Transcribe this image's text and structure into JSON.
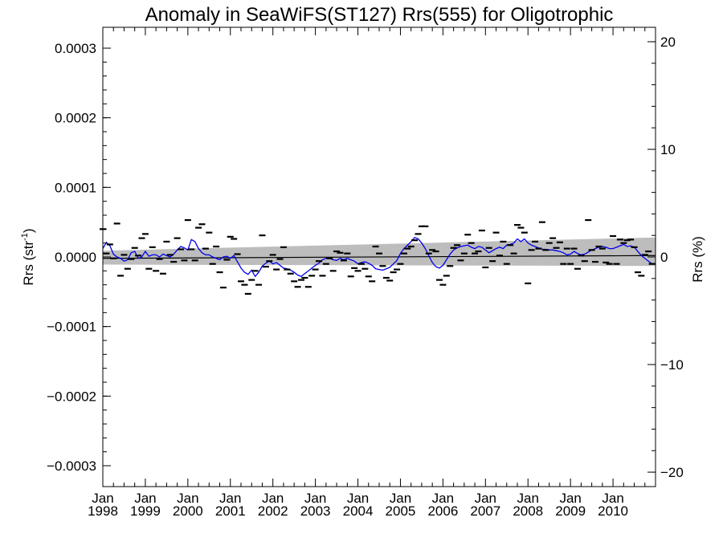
{
  "chart_data": {
    "type": "scatter",
    "title": "Anomaly in SeaWiFS(ST127) Rrs(555) for Oligotrophic",
    "ylabel_main": "Rrs (str",
    "ylabel_sup": "-1",
    "ylabel_close": ")",
    "y2label": "Rrs (%)",
    "xlim": [
      0,
      156
    ],
    "ylim": [
      -0.00033,
      0.00033
    ],
    "y2lim": [
      -21.34,
      21.34
    ],
    "grid": false,
    "legend": "none",
    "y_ticks": [
      {
        "value": 0.0003,
        "label": "0.0003"
      },
      {
        "value": 0.0002,
        "label": "0.0002"
      },
      {
        "value": 0.0001,
        "label": "0.0001"
      },
      {
        "value": 0.0,
        "label": "0.0000"
      },
      {
        "value": -0.0001,
        "label": "−0.0001"
      },
      {
        "value": -0.0002,
        "label": "−0.0002"
      },
      {
        "value": -0.0003,
        "label": "−0.0003"
      }
    ],
    "y2_ticks": [
      {
        "value": 20,
        "label": "20"
      },
      {
        "value": 10,
        "label": "10"
      },
      {
        "value": 0,
        "label": "0"
      },
      {
        "value": -10,
        "label": "−10"
      },
      {
        "value": -20,
        "label": "−20"
      }
    ],
    "x_ticks": [
      {
        "value": 0,
        "month": "Jan",
        "year": "1998"
      },
      {
        "value": 12,
        "month": "Jan",
        "year": "1999"
      },
      {
        "value": 24,
        "month": "Jan",
        "year": "2000"
      },
      {
        "value": 36,
        "month": "Jan",
        "year": "2001"
      },
      {
        "value": 48,
        "month": "Jan",
        "year": "2002"
      },
      {
        "value": 60,
        "month": "Jan",
        "year": "2003"
      },
      {
        "value": 72,
        "month": "Jan",
        "year": "2004"
      },
      {
        "value": 84,
        "month": "Jan",
        "year": "2005"
      },
      {
        "value": 96,
        "month": "Jan",
        "year": "2006"
      },
      {
        "value": 108,
        "month": "Jan",
        "year": "2007"
      },
      {
        "value": 120,
        "month": "Jan",
        "year": "2008"
      },
      {
        "value": 132,
        "month": "Jan",
        "year": "2009"
      },
      {
        "value": 144,
        "month": "Jan",
        "year": "2010"
      }
    ],
    "monthly_anomaly": [
      [
        0,
        4e-05
      ],
      [
        1,
        5e-06
      ],
      [
        2,
        1.8e-05
      ],
      [
        3,
        -2e-06
      ],
      [
        4,
        4.8e-05
      ],
      [
        5,
        -2.7e-05
      ],
      [
        6,
        3e-06
      ],
      [
        7,
        -1.7e-05
      ],
      [
        8,
        -3e-06
      ],
      [
        9,
        1.3e-05
      ],
      [
        10,
        2e-06
      ],
      [
        11,
        2.7e-05
      ],
      [
        12,
        3.3e-05
      ],
      [
        13,
        -1.7e-05
      ],
      [
        14,
        1.4e-05
      ],
      [
        15,
        -2e-05
      ],
      [
        16,
        -3e-06
      ],
      [
        17,
        -2.4e-05
      ],
      [
        18,
        2.2e-05
      ],
      [
        19,
        3e-06
      ],
      [
        20,
        -7e-06
      ],
      [
        21,
        2.7e-05
      ],
      [
        22,
        1.1e-05
      ],
      [
        23,
        -5e-06
      ],
      [
        24,
        5.3e-05
      ],
      [
        25,
        1.1e-05
      ],
      [
        26,
        -5e-06
      ],
      [
        27,
        4.2e-05
      ],
      [
        28,
        4.7e-05
      ],
      [
        29,
        1.2e-05
      ],
      [
        30,
        3.5e-05
      ],
      [
        31,
        -1e-05
      ],
      [
        32,
        1.5e-05
      ],
      [
        33,
        -2.2e-05
      ],
      [
        34,
        -4.4e-05
      ],
      [
        35,
        -4e-06
      ],
      [
        36,
        2.9e-05
      ],
      [
        37,
        2.6e-05
      ],
      [
        38,
        4e-06
      ],
      [
        39,
        -3.5e-05
      ],
      [
        40,
        -4e-05
      ],
      [
        41,
        -5.3e-05
      ],
      [
        42,
        -3.3e-05
      ],
      [
        43,
        -2e-05
      ],
      [
        44,
        -4e-05
      ],
      [
        45,
        3.1e-05
      ],
      [
        46,
        -1.4e-05
      ],
      [
        47,
        -6e-06
      ],
      [
        48,
        3e-06
      ],
      [
        49,
        -1.8e-05
      ],
      [
        50,
        -3e-06
      ],
      [
        51,
        1.4e-05
      ],
      [
        52,
        -1.8e-05
      ],
      [
        53,
        -2.4e-05
      ],
      [
        54,
        -3.5e-05
      ],
      [
        55,
        -4.3e-05
      ],
      [
        56,
        -3.3e-05
      ],
      [
        57,
        -3e-05
      ],
      [
        58,
        -4.3e-05
      ],
      [
        59,
        -2.7e-05
      ],
      [
        60,
        -1.8e-05
      ],
      [
        61,
        -6e-06
      ],
      [
        62,
        -2.7e-05
      ],
      [
        63,
        -1e-05
      ],
      [
        64,
        -2e-06
      ],
      [
        65,
        -2e-05
      ],
      [
        66,
        8e-06
      ],
      [
        67,
        6e-06
      ],
      [
        68,
        -5e-06
      ],
      [
        69,
        5e-06
      ],
      [
        70,
        -2.8e-05
      ],
      [
        71,
        -1.6e-05
      ],
      [
        72,
        -2e-05
      ],
      [
        73,
        -1e-05
      ],
      [
        74,
        -1.7e-05
      ],
      [
        75,
        -2.8e-05
      ],
      [
        76,
        -3.5e-05
      ],
      [
        77,
        1.5e-05
      ],
      [
        78,
        5e-06
      ],
      [
        79,
        -1.3e-05
      ],
      [
        80,
        -3e-05
      ],
      [
        81,
        -3.4e-05
      ],
      [
        82,
        -2.2e-05
      ],
      [
        83,
        -1.8e-05
      ],
      [
        84,
        -1e-05
      ],
      [
        85,
        5e-06
      ],
      [
        86,
        1.2e-05
      ],
      [
        87,
        1.5e-05
      ],
      [
        88,
        2.4e-05
      ],
      [
        89,
        3.3e-05
      ],
      [
        90,
        4.4e-05
      ],
      [
        91,
        4.4e-05
      ],
      [
        92,
        5e-06
      ],
      [
        93,
        1e-05
      ],
      [
        94,
        8e-06
      ],
      [
        95,
        -3.3e-05
      ],
      [
        96,
        -4e-05
      ],
      [
        97,
        -2.7e-05
      ],
      [
        98,
        -1.3e-05
      ],
      [
        99,
        1.3e-05
      ],
      [
        100,
        1.7e-05
      ],
      [
        101,
        -5e-06
      ],
      [
        102,
        5e-06
      ],
      [
        103,
        3.2e-05
      ],
      [
        104,
        2e-05
      ],
      [
        105,
        5e-06
      ],
      [
        106,
        8e-06
      ],
      [
        107,
        3.8e-05
      ],
      [
        108,
        -1.5e-05
      ],
      [
        109,
        1.3e-05
      ],
      [
        110,
        -6e-06
      ],
      [
        111,
        3.5e-05
      ],
      [
        112,
        2e-06
      ],
      [
        113,
        2.2e-05
      ],
      [
        114,
        -1e-05
      ],
      [
        115,
        1.7e-05
      ],
      [
        116,
        5e-06
      ],
      [
        117,
        4.6e-05
      ],
      [
        118,
        4.2e-05
      ],
      [
        119,
        3.5e-05
      ],
      [
        120,
        -3.8e-05
      ],
      [
        121,
        1e-05
      ],
      [
        122,
        2.2e-05
      ],
      [
        123,
        1.2e-05
      ],
      [
        124,
        5e-05
      ],
      [
        125,
        1e-05
      ],
      [
        126,
        2e-05
      ],
      [
        127,
        2.7e-05
      ],
      [
        128,
        1.3e-05
      ],
      [
        129,
        2.1e-05
      ],
      [
        130,
        -1e-05
      ],
      [
        131,
        1.2e-05
      ],
      [
        132,
        -1e-05
      ],
      [
        133,
        1.2e-05
      ],
      [
        134,
        -1.7e-05
      ],
      [
        135,
        2e-06
      ],
      [
        136,
        -6e-06
      ],
      [
        137,
        5.3e-05
      ],
      [
        138,
        1e-05
      ],
      [
        139,
        -7e-06
      ],
      [
        140,
        1.5e-05
      ],
      [
        141,
        1.2e-05
      ],
      [
        142,
        -8e-06
      ],
      [
        143,
        -1e-05
      ],
      [
        144,
        3e-05
      ],
      [
        145,
        -1e-05
      ],
      [
        146,
        2.5e-05
      ],
      [
        147,
        2e-05
      ],
      [
        148,
        2.4e-05
      ],
      [
        149,
        2.5e-05
      ],
      [
        150,
        1.4e-05
      ],
      [
        151,
        -2.2e-05
      ],
      [
        152,
        -2.7e-05
      ],
      [
        153,
        3e-06
      ],
      [
        154,
        8e-06
      ],
      [
        155,
        -1e-05
      ]
    ],
    "running_mean": [
      [
        0,
        1.2e-05
      ],
      [
        1,
        2.1e-05
      ],
      [
        2,
        1.6e-05
      ],
      [
        3,
        4e-06
      ],
      [
        4,
        0.0
      ],
      [
        5,
        -2e-06
      ],
      [
        6,
        -6e-06
      ],
      [
        7,
        -4e-06
      ],
      [
        8,
        6e-06
      ],
      [
        9,
        8e-06
      ],
      [
        10,
        -2e-06
      ],
      [
        11,
        0.0
      ],
      [
        12,
        8e-06
      ],
      [
        13,
        1e-06
      ],
      [
        14,
        3e-06
      ],
      [
        15,
        3e-06
      ],
      [
        16,
        0.0
      ],
      [
        17,
        4e-06
      ],
      [
        18,
        2e-06
      ],
      [
        19,
        0.0
      ],
      [
        20,
        4e-06
      ],
      [
        21,
        1e-05
      ],
      [
        22,
        1.5e-05
      ],
      [
        23,
        1.3e-05
      ],
      [
        24,
        1e-05
      ],
      [
        25,
        2.5e-05
      ],
      [
        26,
        2.2e-05
      ],
      [
        27,
        1.2e-05
      ],
      [
        28,
        6e-06
      ],
      [
        29,
        3e-06
      ],
      [
        30,
        3e-06
      ],
      [
        31,
        0.0
      ],
      [
        32,
        -2e-06
      ],
      [
        33,
        -4e-06
      ],
      [
        34,
        0.0
      ],
      [
        35,
        1e-06
      ],
      [
        36,
        -2e-06
      ],
      [
        37,
        2e-06
      ],
      [
        38,
        -7e-06
      ],
      [
        39,
        -1.6e-05
      ],
      [
        40,
        -2.2e-05
      ],
      [
        41,
        -2.5e-05
      ],
      [
        42,
        -1.9e-05
      ],
      [
        43,
        -2.8e-05
      ],
      [
        44,
        -2.2e-05
      ],
      [
        45,
        -1.3e-05
      ],
      [
        46,
        -9e-06
      ],
      [
        47,
        -6e-06
      ],
      [
        48,
        -1e-05
      ],
      [
        49,
        -8e-06
      ],
      [
        50,
        -1.2e-05
      ],
      [
        51,
        -1.6e-05
      ],
      [
        52,
        -1.7e-05
      ],
      [
        53,
        -1.9e-05
      ],
      [
        54,
        -2.2e-05
      ],
      [
        55,
        -2.6e-05
      ],
      [
        56,
        -2.8e-05
      ],
      [
        57,
        -2.4e-05
      ],
      [
        58,
        -2e-05
      ],
      [
        59,
        -1.6e-05
      ],
      [
        60,
        -1.2e-05
      ],
      [
        61,
        -9e-06
      ],
      [
        62,
        -4e-06
      ],
      [
        63,
        -2e-06
      ],
      [
        64,
        -2e-06
      ],
      [
        65,
        -4e-06
      ],
      [
        66,
        -5e-06
      ],
      [
        67,
        -2e-06
      ],
      [
        68,
        -4e-06
      ],
      [
        69,
        -2e-06
      ],
      [
        70,
        -4e-06
      ],
      [
        71,
        -6e-06
      ],
      [
        72,
        -1e-05
      ],
      [
        73,
        -8e-06
      ],
      [
        74,
        -7e-06
      ],
      [
        75,
        -9e-06
      ],
      [
        76,
        -1.2e-05
      ],
      [
        77,
        -1.7e-05
      ],
      [
        78,
        -1.8e-05
      ],
      [
        79,
        -1.9e-05
      ],
      [
        80,
        -1.7e-05
      ],
      [
        81,
        -1.5e-05
      ],
      [
        82,
        -1e-05
      ],
      [
        83,
        -5e-06
      ],
      [
        84,
        5e-06
      ],
      [
        85,
        1.2e-05
      ],
      [
        86,
        1.7e-05
      ],
      [
        87,
        2.2e-05
      ],
      [
        88,
        2.8e-05
      ],
      [
        89,
        2.6e-05
      ],
      [
        90,
        2e-05
      ],
      [
        91,
        1.2e-05
      ],
      [
        92,
        2e-06
      ],
      [
        93,
        -8e-06
      ],
      [
        94,
        -1.4e-05
      ],
      [
        95,
        -1.6e-05
      ],
      [
        96,
        -1.2e-05
      ],
      [
        97,
        -4e-06
      ],
      [
        98,
        4e-06
      ],
      [
        99,
        1e-05
      ],
      [
        100,
        1.3e-05
      ],
      [
        101,
        1.5e-05
      ],
      [
        102,
        1.6e-05
      ],
      [
        103,
        1.7e-05
      ],
      [
        104,
        1.4e-05
      ],
      [
        105,
        1.2e-05
      ],
      [
        106,
        1.5e-05
      ],
      [
        107,
        1.4e-05
      ],
      [
        108,
        1e-05
      ],
      [
        109,
        6e-06
      ],
      [
        110,
        9e-06
      ],
      [
        111,
        1.2e-05
      ],
      [
        112,
        1.4e-05
      ],
      [
        113,
        1.2e-05
      ],
      [
        114,
        1.7e-05
      ],
      [
        115,
        1.8e-05
      ],
      [
        116,
        2e-05
      ],
      [
        117,
        2.6e-05
      ],
      [
        118,
        2.2e-05
      ],
      [
        119,
        2.6e-05
      ],
      [
        120,
        2e-05
      ],
      [
        121,
        1.7e-05
      ],
      [
        122,
        1.5e-05
      ],
      [
        123,
        1.3e-05
      ],
      [
        124,
        1.1e-05
      ],
      [
        125,
        1.1e-05
      ],
      [
        126,
        1e-05
      ],
      [
        127,
        1e-05
      ],
      [
        128,
        9e-06
      ],
      [
        129,
        8e-06
      ],
      [
        130,
        6e-06
      ],
      [
        131,
        3e-06
      ],
      [
        132,
        4e-06
      ],
      [
        133,
        8e-06
      ],
      [
        134,
        5e-06
      ],
      [
        135,
        3e-06
      ],
      [
        136,
        4e-06
      ],
      [
        137,
        7e-06
      ],
      [
        138,
        1e-05
      ],
      [
        139,
        1.2e-05
      ],
      [
        140,
        1.4e-05
      ],
      [
        141,
        1.5e-05
      ],
      [
        142,
        1.4e-05
      ],
      [
        143,
        1.2e-05
      ],
      [
        144,
        1.2e-05
      ],
      [
        145,
        1.4e-05
      ],
      [
        146,
        1.6e-05
      ],
      [
        147,
        1.8e-05
      ],
      [
        148,
        1.5e-05
      ],
      [
        149,
        1.6e-05
      ],
      [
        150,
        1.4e-05
      ],
      [
        151,
        8e-06
      ],
      [
        152,
        2e-06
      ],
      [
        153,
        -2e-06
      ],
      [
        154,
        -6e-06
      ],
      [
        155,
        -1e-05
      ]
    ],
    "trend_line": [
      [
        0,
        -2e-06
      ],
      [
        156,
        2e-06
      ]
    ],
    "confidence_band": {
      "x": [
        0,
        156
      ],
      "upper": [
        9e-06,
        2.8e-05
      ],
      "lower": [
        -1.1e-05,
        -1.3e-05
      ]
    },
    "colors": {
      "running_mean": "#0000ee",
      "confidence_band": "#bdbdbd",
      "markers": "#000000",
      "axes": "#000000"
    }
  }
}
